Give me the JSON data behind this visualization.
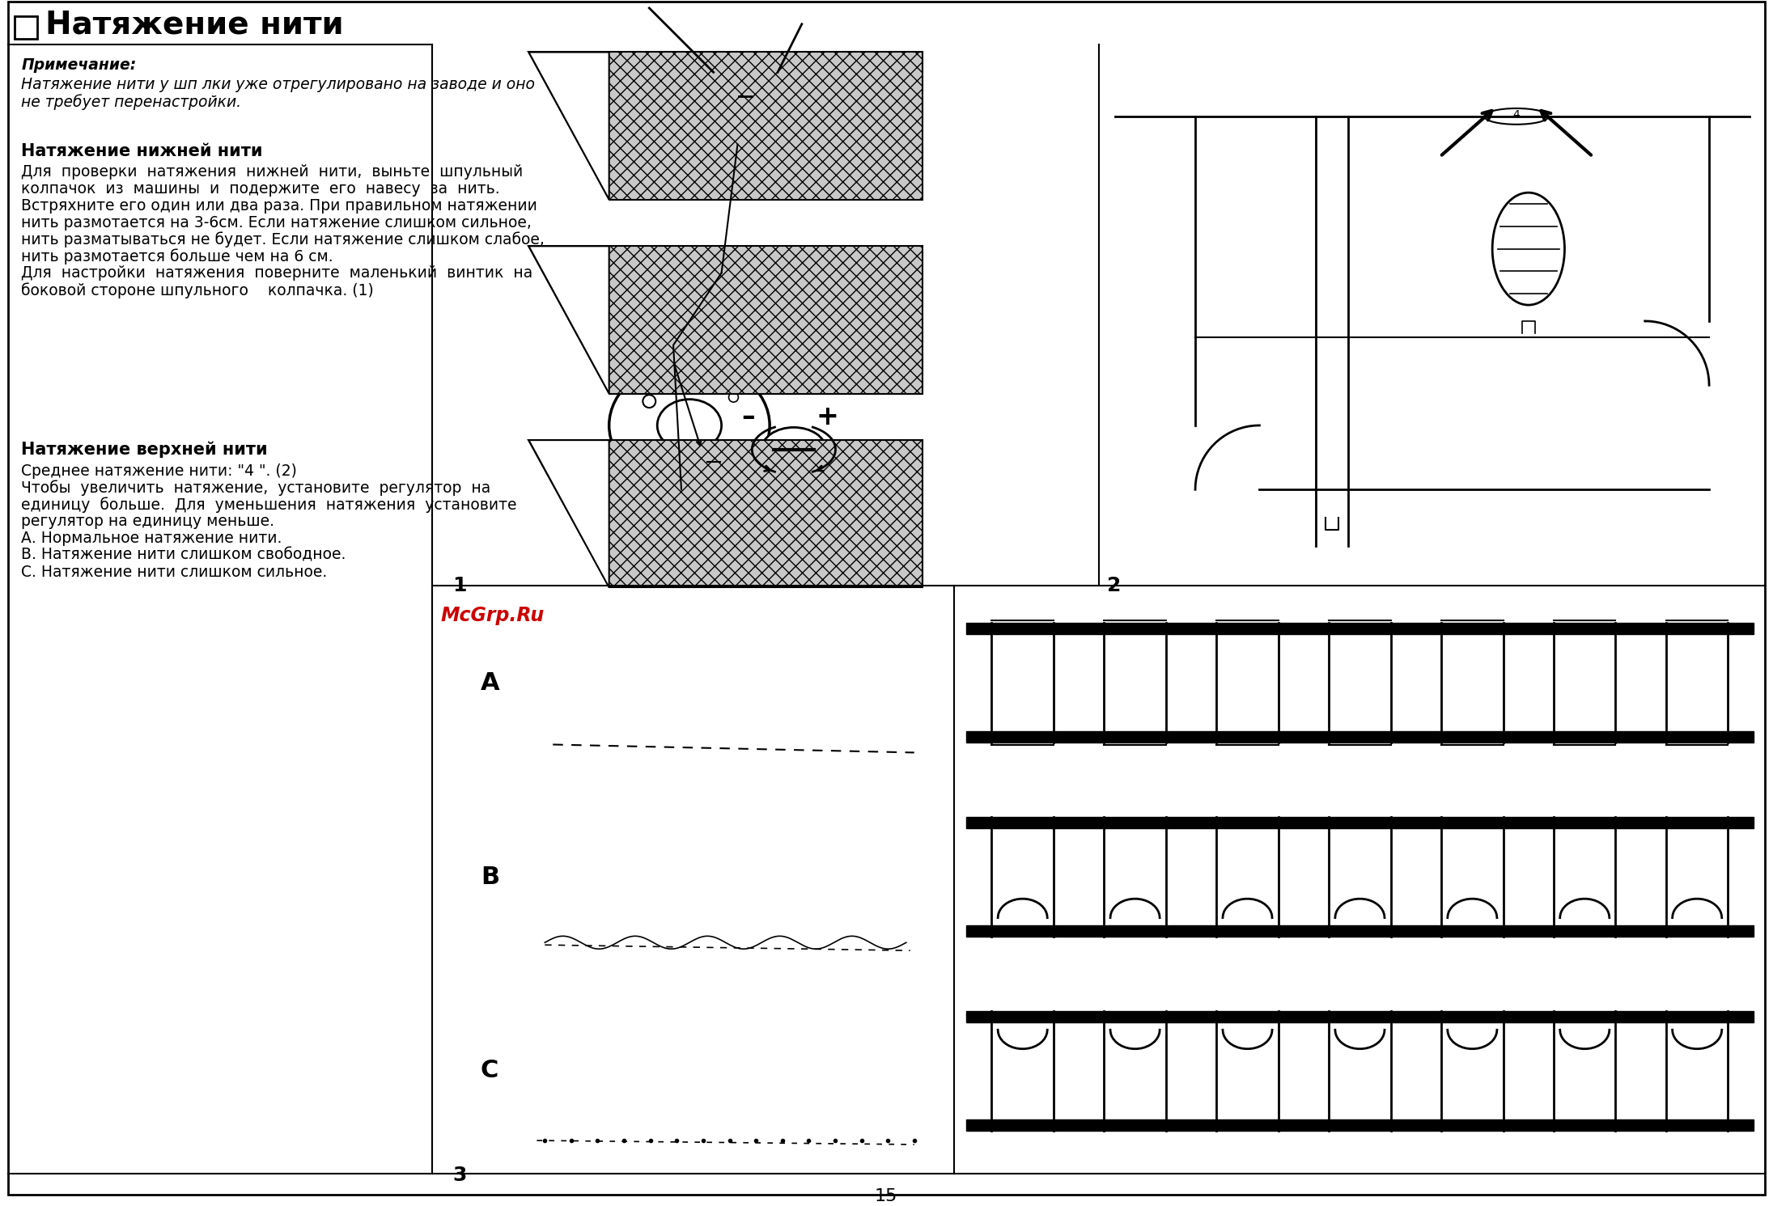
{
  "title": "Натяжение нити",
  "note_title": "Примечание:",
  "note_text1": "Натяжение нити у шп лки уже отрегулировано на заводе и оно",
  "note_text2": "не требует перенастройки.",
  "section1_title": "Натяжение нижней нити",
  "section1_lines": [
    "Для  проверки  натяжения  нижней  нити,  выньте  шпульный",
    "колпачок  из  машины  и  подержите  его  навесу  за  нить.",
    "Встряхните его один или два раза. При правильном натяжении",
    "нить размотается на 3-6см. Если натяжение слишком сильное,",
    "нить разматываться не будет. Если натяжение слишком слабое,",
    "нить размотается больше чем на 6 см.",
    "Для  настройки  натяжения  поверните  маленький  винтик  на",
    "боковой стороне шпульного    колпачка. (1)"
  ],
  "section2_title": "Натяжение верхней нити",
  "section2_lines": [
    "Среднее натяжение нити: \"4 \". (2)",
    "Чтобы  увеличить  натяжение,  установите  регулятор  на",
    "единицу  больше.  Для  уменьшения  натяжения  установите",
    "регулятор на единицу меньше.",
    "А. Нормальное натяжение нити.",
    "В. Натяжение нити слишком свободное.",
    "С. Натяжение нити слишком сильное."
  ],
  "mcgrp_text": "McGrp.Ru",
  "label_1": "1",
  "label_2": "2",
  "label_3": "3",
  "label_15": "15",
  "bg_color": "#ffffff",
  "text_color": "#000000",
  "red_color": "#cc0000"
}
